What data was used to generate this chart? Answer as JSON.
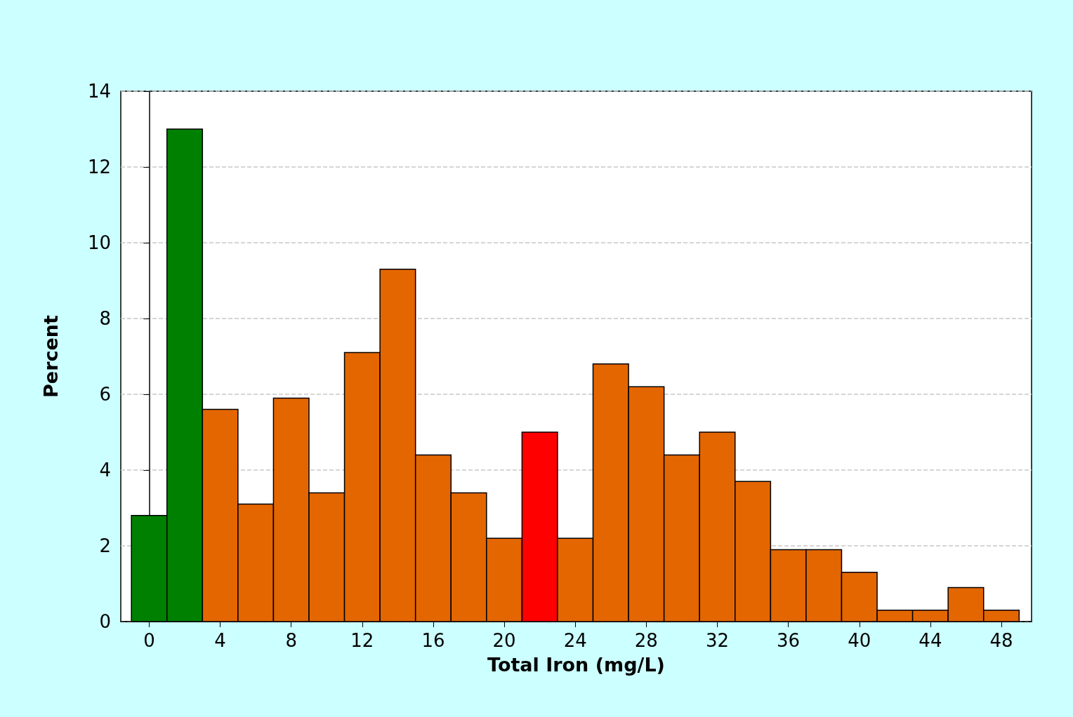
{
  "chart_data": {
    "type": "histogram",
    "xlabel": "Total Iron (mg/L)",
    "ylabel": "Percent",
    "bins": [
      -1,
      1,
      3,
      5,
      7,
      9,
      11,
      13,
      15,
      17,
      19,
      21,
      23,
      25,
      27,
      29,
      31,
      33,
      35,
      37,
      39,
      41,
      43,
      45,
      47,
      49
    ],
    "values": [
      2.8,
      13,
      5.6,
      3.1,
      5.9,
      3.4,
      7.1,
      9.3,
      4.4,
      3.4,
      2.2,
      5,
      2.2,
      6.8,
      6.2,
      4.4,
      5,
      3.7,
      1.9,
      1.9,
      1.3,
      0.3,
      0.3,
      0.9,
      0.3
    ],
    "colors": [
      "#008000",
      "#008000",
      "#e46600",
      "#e46600",
      "#e46600",
      "#e46600",
      "#e46600",
      "#e46600",
      "#e46600",
      "#e46600",
      "#e46600",
      "#ff0000",
      "#e46600",
      "#e46600",
      "#e46600",
      "#e46600",
      "#e46600",
      "#e46600",
      "#e46600",
      "#e46600",
      "#e46600",
      "#e46600",
      "#e46600",
      "#e46600",
      "#e46600"
    ],
    "xlim": [
      -1.6,
      49.7
    ],
    "xticks": [
      0,
      4,
      8,
      12,
      16,
      20,
      24,
      28,
      32,
      36,
      40,
      44,
      48
    ],
    "ylim": [
      0,
      14
    ],
    "yticks": [
      0,
      2,
      4,
      6,
      8,
      10,
      12,
      14
    ],
    "grid": "y"
  }
}
